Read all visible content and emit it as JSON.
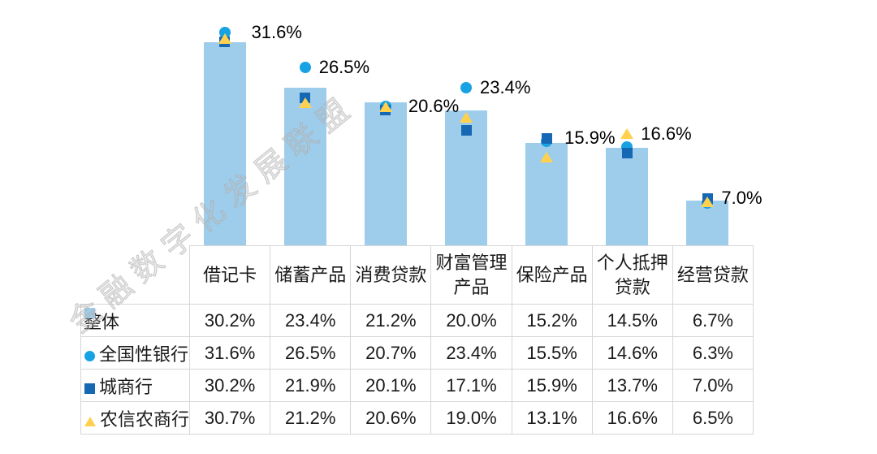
{
  "watermark": "金融数字化发展联盟",
  "chart_data": {
    "type": "bar",
    "subtype": "bars-with-overlaid-scatter-markers-and-data-table",
    "title": "",
    "xlabel": "",
    "ylabel": "",
    "ylim": [
      0,
      36.5
    ],
    "grid": false,
    "axes_visible": false,
    "legend_position": "data-table-left-column",
    "value_suffix": "%",
    "categories": [
      "借记卡",
      "储蓄产品",
      "消费贷款",
      "财富管理产品",
      "保险产品",
      "个人抵押贷款",
      "经营贷款"
    ],
    "categories_display": [
      "借记卡",
      "储蓄产品",
      "消费贷款",
      "财富管理\n产品",
      "保险产品",
      "个人抵押\n贷款",
      "经营贷款"
    ],
    "series": [
      {
        "name": "整体",
        "marker": "bar",
        "color": "#9ECDEB",
        "values": [
          30.2,
          23.4,
          21.2,
          20.0,
          15.2,
          14.5,
          6.7
        ]
      },
      {
        "name": "全国性银行",
        "marker": "circle",
        "color": "#17A3E3",
        "values": [
          31.6,
          26.5,
          20.7,
          23.4,
          15.5,
          14.6,
          6.3
        ]
      },
      {
        "name": "城商行",
        "marker": "square",
        "color": "#1568B3",
        "values": [
          30.2,
          21.9,
          20.1,
          17.1,
          15.9,
          13.7,
          7.0
        ]
      },
      {
        "name": "农信农商行",
        "marker": "triangle",
        "color": "#FFD14E",
        "values": [
          30.7,
          21.2,
          20.6,
          19.0,
          13.1,
          16.6,
          6.5
        ]
      }
    ],
    "point_labels": [
      {
        "category_index": 0,
        "series_index": 1,
        "text": "31.6%"
      },
      {
        "category_index": 1,
        "series_index": 1,
        "text": "26.5%"
      },
      {
        "category_index": 2,
        "series_index": 3,
        "text": "20.6%"
      },
      {
        "category_index": 3,
        "series_index": 1,
        "text": "23.4%"
      },
      {
        "category_index": 4,
        "series_index": 2,
        "text": "15.9%"
      },
      {
        "category_index": 5,
        "series_index": 3,
        "text": "16.6%"
      },
      {
        "category_index": 6,
        "series_index": 2,
        "text": "7.0%"
      }
    ]
  },
  "colors": {
    "bar": "#9ECDEB",
    "national_bank_circle": "#17A3E3",
    "city_bank_square": "#1568B3",
    "rural_bank_triangle": "#FFD14E",
    "table_border": "#D6D6D6",
    "text": "#1A1A1A",
    "watermark": "#C8C8C8"
  }
}
